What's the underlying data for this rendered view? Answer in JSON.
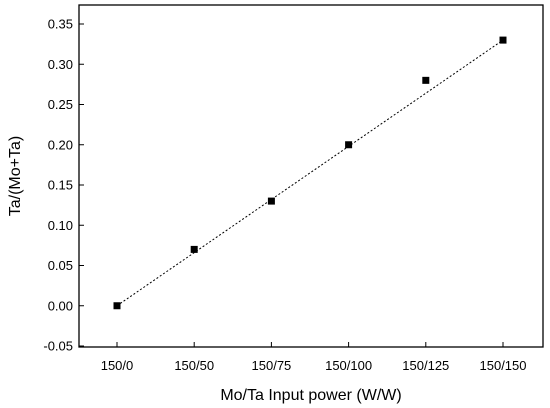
{
  "chart_data": {
    "type": "scatter",
    "title": "",
    "xlabel": "Mo/Ta Input power (W/W)",
    "ylabel": "Ta/(Mo+Ta)",
    "categories": [
      "150/0",
      "150/50",
      "150/75",
      "150/100",
      "150/125",
      "150/150"
    ],
    "series": [
      {
        "values": [
          0.0,
          0.07,
          0.13,
          0.2,
          0.28,
          0.33
        ],
        "marker": "square",
        "color": "#000000"
      }
    ],
    "trendline": {
      "style": "dotted",
      "from": 0.0,
      "to": 0.33
    },
    "ylim": [
      -0.05,
      0.35
    ],
    "yticks": [
      "-0.05",
      "0.00",
      "0.05",
      "0.10",
      "0.15",
      "0.20",
      "0.25",
      "0.30",
      "0.35"
    ],
    "grid": false,
    "legend": "none"
  }
}
